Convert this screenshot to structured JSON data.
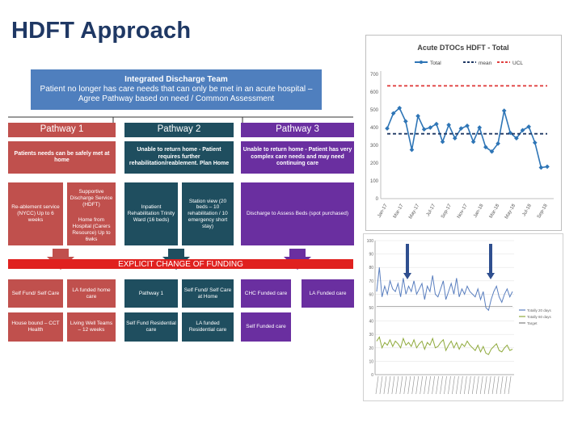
{
  "slide": {
    "title": "HDFT Approach"
  },
  "diagram": {
    "team_title": "Integrated Discharge Team",
    "team_desc": "Patient no longer has care needs that can only be met in an acute hospital – Agree Pathway based on need / Common Assessment",
    "pathway1": {
      "label": "Pathway 1",
      "desc": "Patients needs can be safely met at home",
      "service_a": "Re-ablement service (NYCC) Up to 6 weeks",
      "service_b_top": "Supportive Discharge Service (HDFT)",
      "service_b_bottom": "Home from Hospital (Carers Resource) Up to 6wks"
    },
    "pathway2": {
      "label": "Pathway 2",
      "desc": "Unable to return home - Patient requires further rehabilitation/reablement. Plan Home",
      "service_a": "Inpatient Rehabilitation Trinity Ward (16 beds)",
      "service_b": "Station view (20 beds – 10 rehabilitation / 10 emergency short stay)"
    },
    "pathway3": {
      "label": "Pathway 3",
      "desc": "Unable to return home - Patient has very complex care needs and may need continuing care",
      "service": "Discharge to Assess Beds (spot purchased)"
    },
    "funding_label": "EXPLICIT CHANGE OF FUNDING",
    "outcomes": {
      "self_fund_self_care": "Self Fund/ Self Care",
      "la_home_care": "LA funded home care",
      "house_bound": "House bound – CCT Health",
      "living_well": "Living Well Teams – 12 weeks",
      "pathway1": "Pathway 1",
      "self_fund_home": "Self Fund/ Self Care at Home",
      "self_fund_residential": "Self Fund Residential care",
      "la_residential": "LA funded Residential care",
      "chc_funded": "CHC Funded care",
      "self_funded": "Self Funded care",
      "la_funded_care": "LA Funded care"
    }
  },
  "colors": {
    "blue": "#4f7fbe",
    "red": "#c0504d",
    "teal": "#1f4e5f",
    "purple": "#6a2fa0",
    "funding_red": "#e0211f",
    "title_navy": "#1f3864"
  },
  "chart_data": [
    {
      "type": "line",
      "title": "Acute DTOCs HDFT - Total",
      "legend": [
        "Total",
        "mean",
        "UCL"
      ],
      "legend_position": "top",
      "ylim": [
        0,
        700
      ],
      "yticks": [
        0,
        100,
        200,
        300,
        400,
        500,
        600,
        700
      ],
      "xtick_labels": [
        "Jan-17",
        "Mar-17",
        "May-17",
        "Jul-17",
        "Sep-17",
        "Nov-17",
        "Jan-18",
        "Mar-18",
        "May-18",
        "Jul-18",
        "Sep-18"
      ],
      "series": [
        {
          "name": "Total",
          "color": "#2e75b6",
          "values": [
            395,
            480,
            510,
            435,
            275,
            465,
            390,
            400,
            420,
            320,
            415,
            340,
            395,
            410,
            320,
            400,
            290,
            265,
            310,
            495,
            370,
            340,
            385,
            405,
            315,
            175,
            180
          ]
        },
        {
          "name": "mean",
          "color": "#1f3864",
          "values": [
            365,
            365,
            365,
            365,
            365,
            365,
            365,
            365,
            365,
            365,
            365,
            365,
            365,
            365,
            365,
            365,
            365,
            365,
            365,
            365,
            365,
            365,
            365,
            365,
            365,
            365,
            365
          ]
        },
        {
          "name": "UCL",
          "color": "#e04040",
          "values": [
            635,
            635,
            635,
            635,
            635,
            635,
            635,
            635,
            635,
            635,
            635,
            635,
            635,
            635,
            635,
            635,
            635,
            635,
            635,
            635,
            635,
            635,
            635,
            635,
            635,
            635,
            635
          ]
        }
      ]
    },
    {
      "type": "line",
      "ylim": [
        0,
        100
      ],
      "yticks": [
        0,
        10,
        20,
        30,
        40,
        50,
        60,
        70,
        80,
        90,
        100
      ],
      "legend": [
        "Totally 20 days",
        "Totally 60 days",
        "Target"
      ],
      "legend_position": "right",
      "series": [
        {
          "name": "Totally 20 days",
          "color": "#5a7fbf",
          "values": [
            62,
            80,
            58,
            66,
            60,
            70,
            64,
            62,
            68,
            58,
            72,
            60,
            66,
            62,
            70,
            60,
            64,
            68,
            56,
            66,
            62,
            74,
            60,
            58,
            64,
            70,
            56,
            62,
            68,
            60,
            72,
            58,
            64,
            60,
            66,
            62,
            60,
            58,
            64,
            56,
            62,
            50,
            48,
            56,
            62,
            66,
            58,
            54,
            60,
            64,
            58,
            62
          ]
        },
        {
          "name": "Totally 60 days",
          "color": "#8faa3c",
          "values": [
            25,
            28,
            20,
            24,
            22,
            26,
            21,
            25,
            23,
            20,
            27,
            22,
            24,
            21,
            26,
            20,
            23,
            25,
            19,
            24,
            22,
            27,
            20,
            21,
            24,
            26,
            18,
            22,
            25,
            20,
            24,
            19,
            23,
            21,
            25,
            22,
            20,
            18,
            22,
            17,
            21,
            16,
            15,
            19,
            21,
            23,
            18,
            17,
            20,
            22,
            18,
            19
          ]
        },
        {
          "name": "Target",
          "color": "#808080",
          "values": [
            51,
            51,
            51,
            51,
            51,
            51,
            51,
            51,
            51,
            51,
            51,
            51,
            51,
            51,
            51,
            51,
            51,
            51,
            51,
            51,
            51,
            51,
            51,
            51,
            51,
            51,
            51,
            51,
            51,
            51,
            51,
            51,
            51,
            51,
            51,
            51,
            51,
            51,
            51,
            51,
            51,
            51,
            51,
            51,
            51,
            51,
            51,
            51,
            51,
            51,
            51,
            51
          ]
        }
      ]
    }
  ]
}
